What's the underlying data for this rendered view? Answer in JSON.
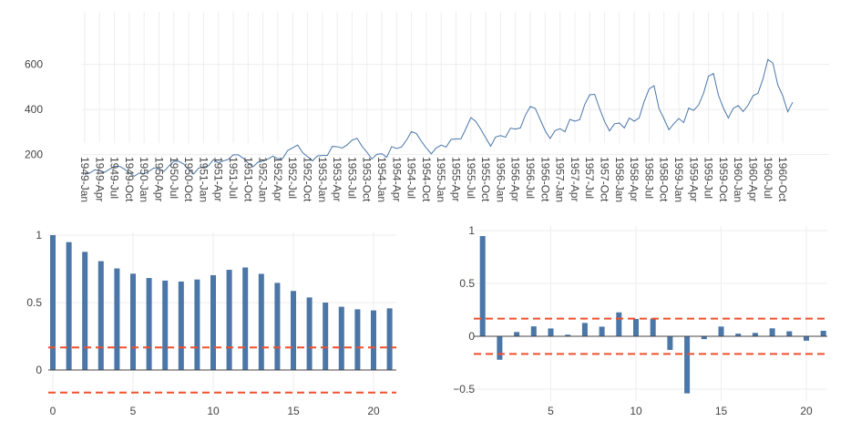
{
  "colors": {
    "series": "#4a76a8",
    "bar": "#4a76a8",
    "confidence": "#f0502d",
    "grid": "#eeeeee",
    "axis": "#444444"
  },
  "chart_data": [
    {
      "type": "line",
      "title": "",
      "xlabel": "",
      "ylabel": "",
      "ylim": [
        100,
        650
      ],
      "yticks": [
        200,
        400,
        600
      ],
      "grid": true,
      "x_start": "1949-Jan",
      "tick_labels": [
        "1949-Jan",
        "1949-Apr",
        "1949-Jul",
        "1949-Oct",
        "1950-Jan",
        "1950-Apr",
        "1950-Jul",
        "1950-Oct",
        "1951-Jan",
        "1951-Apr",
        "1951-Jul",
        "1951-Oct",
        "1952-Jan",
        "1952-Apr",
        "1952-Jul",
        "1952-Oct",
        "1953-Jan",
        "1953-Apr",
        "1953-Jul",
        "1953-Oct",
        "1954-Jan",
        "1954-Apr",
        "1954-Jul",
        "1954-Oct",
        "1955-Jan",
        "1955-Apr",
        "1955-Jul",
        "1955-Oct",
        "1956-Jan",
        "1956-Apr",
        "1956-Jul",
        "1956-Oct",
        "1957-Jan",
        "1957-Apr",
        "1957-Jul",
        "1957-Oct",
        "1958-Jan",
        "1958-Apr",
        "1958-Jul",
        "1958-Oct",
        "1959-Jan",
        "1959-Apr",
        "1959-Jul",
        "1959-Oct",
        "1960-Jan",
        "1960-Apr",
        "1960-Jul",
        "1960-Oct"
      ],
      "values": [
        112,
        118,
        132,
        129,
        121,
        135,
        148,
        148,
        136,
        119,
        104,
        118,
        115,
        126,
        141,
        135,
        125,
        149,
        170,
        170,
        158,
        133,
        114,
        140,
        145,
        150,
        178,
        163,
        172,
        178,
        199,
        199,
        184,
        162,
        146,
        166,
        171,
        180,
        193,
        181,
        183,
        218,
        230,
        242,
        209,
        191,
        172,
        194,
        196,
        196,
        236,
        235,
        229,
        243,
        264,
        272,
        237,
        211,
        180,
        201,
        204,
        188,
        235,
        227,
        234,
        264,
        302,
        293,
        259,
        229,
        203,
        229,
        242,
        233,
        267,
        269,
        270,
        315,
        364,
        347,
        312,
        274,
        237,
        278,
        284,
        277,
        317,
        313,
        318,
        374,
        413,
        405,
        355,
        306,
        271,
        306,
        315,
        301,
        356,
        348,
        355,
        422,
        465,
        467,
        404,
        347,
        305,
        336,
        340,
        318,
        362,
        348,
        363,
        435,
        491,
        505,
        404,
        359,
        310,
        337,
        360,
        342,
        406,
        396,
        420,
        472,
        548,
        559,
        463,
        407,
        362,
        405,
        417,
        391,
        419,
        461,
        472,
        535,
        622,
        606,
        508,
        461,
        390,
        432
      ]
    },
    {
      "type": "bar",
      "title": "",
      "xlabel": "",
      "ylabel": "",
      "x": [
        0,
        1,
        2,
        3,
        4,
        5,
        6,
        7,
        8,
        9,
        10,
        11,
        12,
        13,
        14,
        15,
        16,
        17,
        18,
        19,
        20,
        21
      ],
      "values": [
        1.0,
        0.948,
        0.876,
        0.807,
        0.753,
        0.714,
        0.682,
        0.663,
        0.656,
        0.671,
        0.703,
        0.743,
        0.76,
        0.713,
        0.646,
        0.586,
        0.538,
        0.5,
        0.469,
        0.45,
        0.442,
        0.457
      ],
      "confidence_band": [
        -0.167,
        0.167
      ],
      "ylim": [
        -0.2,
        1.05
      ],
      "xlim": [
        -0.5,
        21.5
      ],
      "yticks": [
        0,
        0.5,
        1
      ],
      "ytick_labels": [
        "0",
        "0.5",
        "1"
      ],
      "xticks": [
        0,
        5,
        10,
        15,
        20
      ],
      "grid": true
    },
    {
      "type": "bar",
      "title": "",
      "xlabel": "",
      "ylabel": "",
      "x": [
        1,
        2,
        3,
        4,
        5,
        6,
        7,
        8,
        9,
        10,
        11,
        12,
        13,
        14,
        15,
        16,
        17,
        18,
        19,
        20,
        21
      ],
      "values": [
        0.948,
        -0.222,
        0.04,
        0.094,
        0.074,
        0.015,
        0.126,
        0.091,
        0.226,
        0.164,
        0.167,
        -0.129,
        -0.54,
        -0.027,
        0.092,
        0.025,
        0.032,
        0.075,
        0.047,
        -0.042,
        0.052
      ],
      "confidence_band": [
        -0.167,
        0.167
      ],
      "ylim": [
        -0.58,
        1.02
      ],
      "xlim": [
        0.6,
        21.3
      ],
      "yticks": [
        -0.5,
        0,
        0.5,
        1
      ],
      "ytick_labels": [
        "−0.5",
        "0",
        "0.5",
        "1"
      ],
      "xticks": [
        5,
        10,
        15,
        20
      ],
      "grid": true
    }
  ]
}
